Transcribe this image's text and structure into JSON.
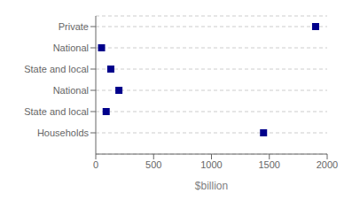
{
  "chart_data": {
    "type": "dot",
    "orientation": "horizontal",
    "categories": [
      "Private",
      "National",
      "State and local",
      "National",
      "State and local",
      "Households"
    ],
    "values": [
      1900,
      50,
      130,
      200,
      90,
      1450
    ],
    "color": "#00008B",
    "marker": "square",
    "xlabel": "$billion",
    "xlim": [
      0,
      2000
    ],
    "xticks": [
      0,
      500,
      1000,
      1500,
      2000
    ],
    "grid": true
  }
}
